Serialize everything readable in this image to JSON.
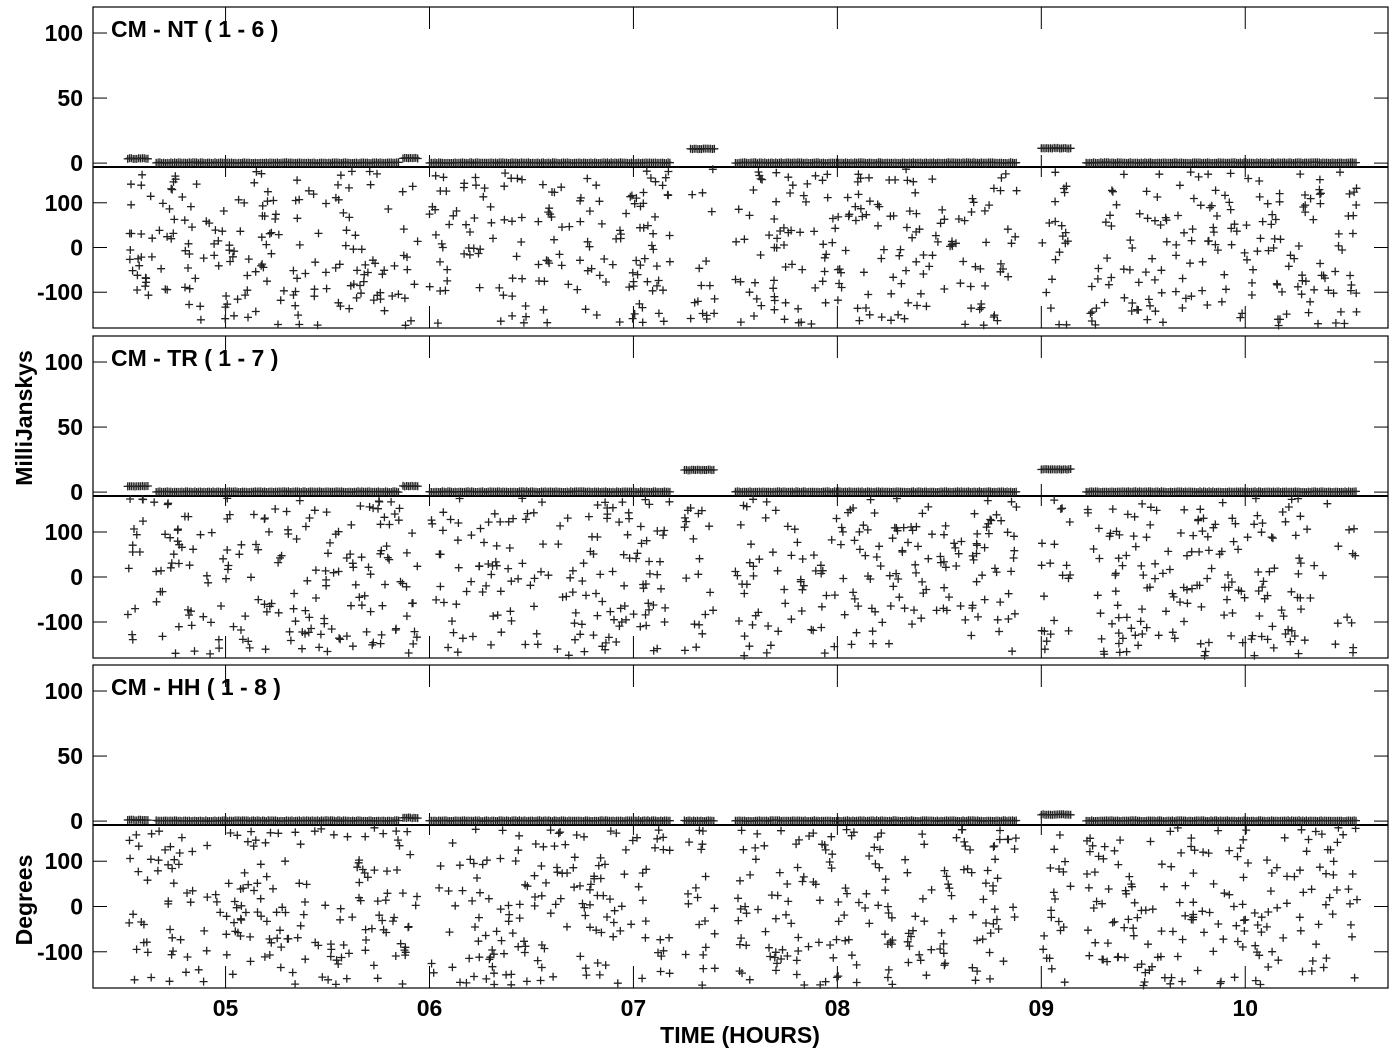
{
  "chart_data": {
    "type": "scatter",
    "xlabel": "TIME (HOURS)",
    "xlim": [
      4.35,
      10.7
    ],
    "x_ticks": [
      5,
      6,
      7,
      8,
      9,
      10
    ],
    "x_tick_labels": [
      "05",
      "06",
      "07",
      "08",
      "09",
      "10"
    ],
    "ylabel_amplitude": "MilliJanskys",
    "ylabel_phase": "Degrees",
    "amp_ylim": [
      -3,
      120
    ],
    "amp_ticks": [
      0,
      50,
      100
    ],
    "amp_tick_labels": [
      "0",
      "50",
      "100"
    ],
    "phase_ylim": [
      -180,
      180
    ],
    "phase_ticks": [
      -100,
      0,
      100
    ],
    "phase_tick_labels": [
      "-100",
      "0",
      "100"
    ],
    "marker": "+",
    "panels": [
      {
        "label": "CM - NT ( 1 - 6 )",
        "amplitude_segments": [
          {
            "x0": 4.52,
            "x1": 4.62,
            "y": 3.5
          },
          {
            "x0": 4.66,
            "x1": 5.85,
            "y": 0.3
          },
          {
            "x0": 5.87,
            "x1": 5.95,
            "y": 3.8
          },
          {
            "x0": 6.0,
            "x1": 7.18,
            "y": 0.3
          },
          {
            "x0": 7.28,
            "x1": 7.4,
            "y": 11.0
          },
          {
            "x0": 7.5,
            "x1": 8.88,
            "y": 0.3
          },
          {
            "x0": 9.0,
            "x1": 9.15,
            "y": 11.5
          },
          {
            "x0": 9.22,
            "x1": 10.55,
            "y": 0.3
          }
        ],
        "phase_segments": [
          [
            4.52,
            5.95
          ],
          [
            6.0,
            7.18
          ],
          [
            7.28,
            7.4
          ],
          [
            7.5,
            8.88
          ],
          [
            9.0,
            9.15
          ],
          [
            9.22,
            10.55
          ]
        ]
      },
      {
        "label": "CM - TR ( 1 - 7 )",
        "amplitude_segments": [
          {
            "x0": 4.52,
            "x1": 4.62,
            "y": 4.5
          },
          {
            "x0": 4.66,
            "x1": 5.85,
            "y": 0.3
          },
          {
            "x0": 5.87,
            "x1": 5.95,
            "y": 4.5
          },
          {
            "x0": 6.0,
            "x1": 7.18,
            "y": 0.3
          },
          {
            "x0": 7.25,
            "x1": 7.4,
            "y": 17.0
          },
          {
            "x0": 7.5,
            "x1": 8.88,
            "y": 0.3
          },
          {
            "x0": 9.0,
            "x1": 9.15,
            "y": 17.5
          },
          {
            "x0": 9.22,
            "x1": 10.55,
            "y": 0.3
          }
        ],
        "phase_segments": [
          [
            4.52,
            5.95
          ],
          [
            6.0,
            7.18
          ],
          [
            7.25,
            7.4
          ],
          [
            7.5,
            8.88
          ],
          [
            9.0,
            9.15
          ],
          [
            9.22,
            10.55
          ]
        ]
      },
      {
        "label": "CM - HH ( 1 - 8 )",
        "amplitude_segments": [
          {
            "x0": 4.52,
            "x1": 4.62,
            "y": 0.8
          },
          {
            "x0": 4.66,
            "x1": 5.85,
            "y": 0.3
          },
          {
            "x0": 5.87,
            "x1": 5.95,
            "y": 2.5
          },
          {
            "x0": 6.0,
            "x1": 7.18,
            "y": 0.3
          },
          {
            "x0": 7.25,
            "x1": 7.4,
            "y": 0.3
          },
          {
            "x0": 7.5,
            "x1": 8.88,
            "y": 0.3
          },
          {
            "x0": 9.0,
            "x1": 9.15,
            "y": 5.0
          },
          {
            "x0": 9.22,
            "x1": 10.55,
            "y": 0.3
          }
        ],
        "phase_segments": [
          [
            4.52,
            5.95
          ],
          [
            6.0,
            7.18
          ],
          [
            7.25,
            7.4
          ],
          [
            7.5,
            8.88
          ],
          [
            9.0,
            9.15
          ],
          [
            9.22,
            10.55
          ]
        ]
      }
    ]
  }
}
